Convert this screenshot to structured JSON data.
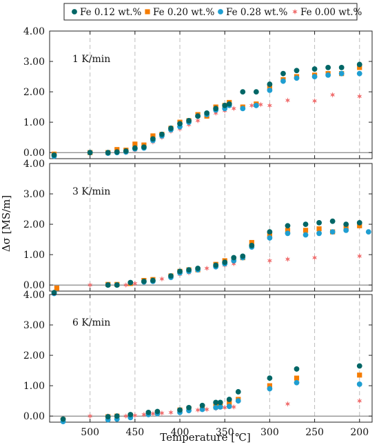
{
  "chart_data": {
    "type": "scatter",
    "xlabel": "Temperature [℃]",
    "ylabel": "Δσ [MS/m]",
    "x_reversed": true,
    "xlim": [
      545,
      186
    ],
    "ylim": [
      -0.2,
      4.0
    ],
    "xticks": [
      500,
      450,
      400,
      350,
      300,
      250,
      200
    ],
    "yticks": [
      0.0,
      1.0,
      2.0,
      3.0,
      4.0
    ],
    "ytick_labels": [
      "0.00",
      "1.00",
      "2.00",
      "3.00",
      "4.00"
    ],
    "grid": "vertical dashed",
    "legend_position": "top",
    "series_styles": [
      {
        "name": "Fe 0.12 wt.%",
        "marker": "circle",
        "color": "#006666"
      },
      {
        "name": "Fe 0.20 wt.%",
        "marker": "square",
        "color": "#f57c00"
      },
      {
        "name": "Fe 0.28 wt.%",
        "marker": "circle",
        "color": "#1f9ed1"
      },
      {
        "name": "Fe 0.00 wt.%",
        "marker": "star",
        "color": "#f07070"
      }
    ],
    "panels": [
      {
        "label": "1 K/min",
        "series": [
          {
            "name": "Fe 0.12 wt.%",
            "x": [
              540,
              500,
              480,
              470,
              460,
              450,
              440,
              430,
              420,
              410,
              400,
              390,
              380,
              370,
              360,
              350,
              345,
              330,
              315,
              300,
              285,
              270,
              250,
              235,
              220,
              200
            ],
            "y": [
              -0.08,
              0.0,
              0.0,
              0.02,
              0.05,
              0.15,
              0.18,
              0.45,
              0.6,
              0.8,
              0.95,
              1.05,
              1.2,
              1.3,
              1.45,
              1.55,
              1.6,
              2.0,
              2.0,
              2.25,
              2.6,
              2.7,
              2.75,
              2.8,
              2.8,
              2.9
            ]
          },
          {
            "name": "Fe 0.20 wt.%",
            "x": [
              540,
              500,
              480,
              470,
              460,
              450,
              440,
              430,
              420,
              410,
              400,
              390,
              380,
              370,
              360,
              350,
              345,
              330,
              315,
              300,
              285,
              270,
              250,
              235,
              220,
              200
            ],
            "y": [
              -0.05,
              0.0,
              0.0,
              0.1,
              0.08,
              0.28,
              0.25,
              0.55,
              0.6,
              0.8,
              1.0,
              1.05,
              1.25,
              1.2,
              1.5,
              1.55,
              1.65,
              1.5,
              1.6,
              2.15,
              2.4,
              2.5,
              2.55,
              2.6,
              2.6,
              2.8
            ]
          },
          {
            "name": "Fe 0.28 wt.%",
            "x": [
              540,
              500,
              480,
              470,
              460,
              450,
              440,
              430,
              420,
              410,
              400,
              390,
              380,
              370,
              360,
              350,
              345,
              330,
              315,
              300,
              285,
              270,
              250,
              235,
              220,
              200
            ],
            "y": [
              -0.12,
              0.0,
              -0.02,
              0.0,
              0.02,
              0.12,
              0.15,
              0.4,
              0.55,
              0.75,
              0.85,
              1.0,
              1.2,
              1.25,
              1.4,
              1.45,
              1.55,
              1.45,
              1.55,
              2.05,
              2.35,
              2.45,
              2.5,
              2.55,
              2.6,
              2.6
            ]
          },
          {
            "name": "Fe 0.00 wt.%",
            "x": [
              540,
              500,
              480,
              470,
              460,
              450,
              440,
              430,
              420,
              410,
              400,
              390,
              380,
              370,
              360,
              350,
              340,
              330,
              320,
              310,
              300,
              280,
              250,
              230,
              200
            ],
            "y": [
              -0.05,
              0.0,
              0.0,
              0.0,
              0.0,
              0.08,
              0.15,
              0.35,
              0.5,
              0.7,
              0.78,
              0.92,
              1.05,
              1.2,
              1.3,
              1.38,
              1.45,
              1.5,
              1.55,
              1.58,
              1.55,
              1.72,
              1.7,
              1.9,
              1.85
            ]
          }
        ]
      },
      {
        "label": "3 K/min",
        "series": [
          {
            "name": "Fe 0.12 wt.%",
            "x": [
              540,
              480,
              470,
              455,
              440,
              430,
              410,
              400,
              390,
              380,
              360,
              350,
              340,
              330,
              320,
              300,
              280,
              260,
              245,
              230,
              215,
              200
            ],
            "y": [
              -0.25,
              0.0,
              0.0,
              0.08,
              0.12,
              0.15,
              0.3,
              0.45,
              0.5,
              0.55,
              0.65,
              0.75,
              0.9,
              0.95,
              1.3,
              1.75,
              1.95,
              2.0,
              2.05,
              2.1,
              2.0,
              2.05
            ]
          },
          {
            "name": "Fe 0.20 wt.%",
            "x": [
              537,
              480,
              470,
              455,
              440,
              430,
              410,
              400,
              390,
              380,
              360,
              350,
              340,
              330,
              320,
              300,
              280,
              260,
              245,
              230,
              215,
              200
            ],
            "y": [
              -0.1,
              0.02,
              0.02,
              0.05,
              0.15,
              0.18,
              0.3,
              0.45,
              0.5,
              0.5,
              0.68,
              0.8,
              0.85,
              0.9,
              1.4,
              1.65,
              1.8,
              1.8,
              1.85,
              1.75,
              1.9,
              1.95
            ]
          },
          {
            "name": "Fe 0.28 wt.%",
            "x": [
              540,
              480,
              470,
              455,
              440,
              430,
              410,
              400,
              390,
              380,
              360,
              350,
              340,
              330,
              320,
              300,
              280,
              260,
              245,
              230,
              215,
              190
            ],
            "y": [
              -0.28,
              0.0,
              0.0,
              0.08,
              0.1,
              0.12,
              0.25,
              0.4,
              0.45,
              0.5,
              0.6,
              0.7,
              0.8,
              0.9,
              1.25,
              1.55,
              1.7,
              1.65,
              1.7,
              1.75,
              1.8,
              1.75
            ]
          },
          {
            "name": "Fe 0.00 wt.%",
            "x": [
              500,
              480,
              470,
              460,
              450,
              440,
              430,
              420,
              410,
              400,
              390,
              380,
              370,
              360,
              350,
              340,
              300,
              280,
              250,
              200
            ],
            "y": [
              0.0,
              0.0,
              0.0,
              0.0,
              0.05,
              0.1,
              0.15,
              0.2,
              0.25,
              0.35,
              0.4,
              0.5,
              0.55,
              0.6,
              0.65,
              0.7,
              0.8,
              0.85,
              0.9,
              0.95
            ]
          }
        ]
      },
      {
        "label": "6 K/min",
        "series": [
          {
            "name": "Fe 0.12 wt.%",
            "x": [
              530,
              480,
              470,
              455,
              435,
              425,
              400,
              390,
              375,
              360,
              355,
              345,
              335,
              300,
              270,
              200
            ],
            "y": [
              -0.1,
              -0.02,
              0.0,
              0.05,
              0.12,
              0.15,
              0.2,
              0.28,
              0.35,
              0.45,
              0.45,
              0.55,
              0.8,
              1.25,
              1.55,
              1.65
            ]
          },
          {
            "name": "Fe 0.20 wt.%",
            "x": [
              530,
              480,
              470,
              455,
              435,
              425,
              400,
              390,
              375,
              360,
              355,
              345,
              335,
              300,
              270,
              200
            ],
            "y": [
              -0.12,
              -0.02,
              0.0,
              0.02,
              0.08,
              0.12,
              0.2,
              0.25,
              0.3,
              0.38,
              0.4,
              0.45,
              0.55,
              1.0,
              1.25,
              1.35
            ]
          },
          {
            "name": "Fe 0.28 wt.%",
            "x": [
              530,
              480,
              470,
              455,
              435,
              425,
              400,
              390,
              375,
              360,
              355,
              345,
              335,
              300,
              270,
              200
            ],
            "y": [
              -0.18,
              -0.12,
              -0.1,
              -0.05,
              0.05,
              0.08,
              0.12,
              0.18,
              0.22,
              0.28,
              0.3,
              0.32,
              0.5,
              0.9,
              1.1,
              1.05
            ]
          },
          {
            "name": "Fe 0.00 wt.%",
            "x": [
              500,
              480,
              470,
              460,
              450,
              440,
              430,
              420,
              410,
              400,
              390,
              380,
              370,
              360,
              350,
              340,
              280,
              200
            ],
            "y": [
              0.0,
              0.0,
              0.0,
              0.0,
              0.02,
              0.05,
              0.08,
              0.1,
              0.12,
              0.15,
              0.18,
              0.2,
              0.22,
              0.25,
              0.28,
              0.3,
              0.4,
              0.5
            ]
          }
        ]
      }
    ]
  }
}
